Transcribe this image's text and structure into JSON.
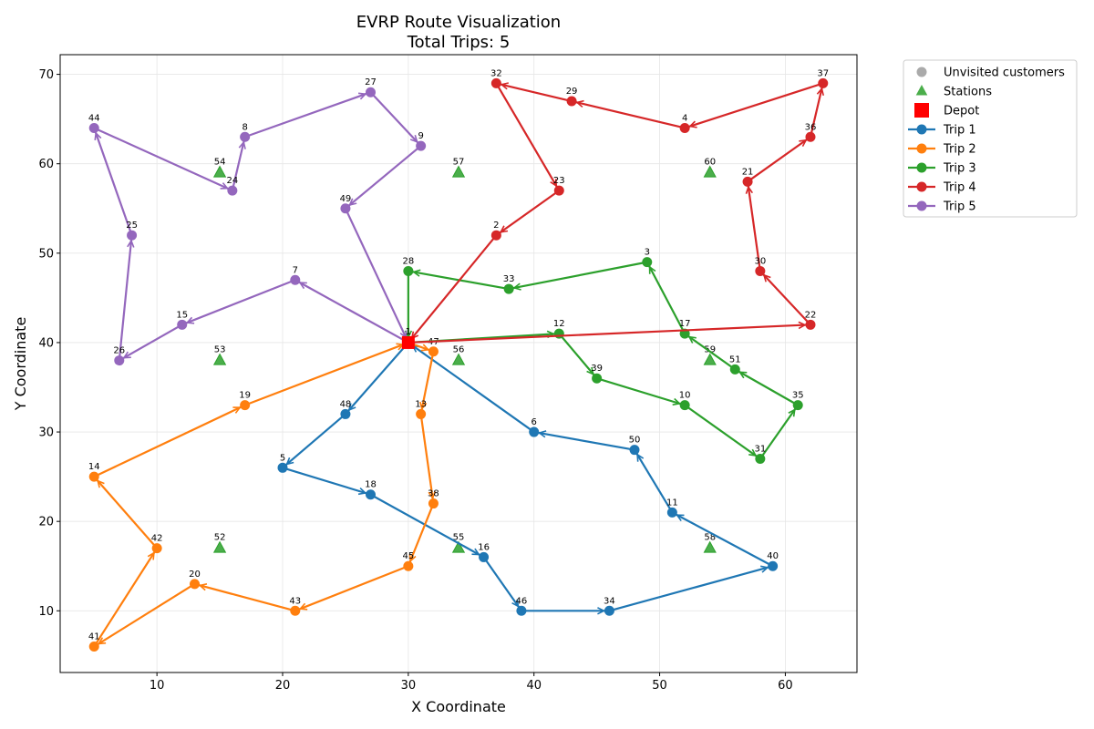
{
  "chart_data": {
    "type": "scatter",
    "title": "EVRP Route Visualization",
    "subtitle": "Total Trips: 5",
    "xlabel": "X Coordinate",
    "ylabel": "Y Coordinate",
    "xlim": [
      2.3,
      65.7
    ],
    "ylim": [
      3.1,
      72.2
    ],
    "xticks": [
      10,
      20,
      30,
      40,
      50,
      60
    ],
    "yticks": [
      10,
      20,
      30,
      40,
      50,
      60,
      70
    ],
    "grid": true,
    "legend_placement": "outside-top-right",
    "depot": {
      "id": "1",
      "x": 30,
      "y": 40,
      "color": "#ff0000"
    },
    "stations": [
      {
        "id": "52",
        "x": 15,
        "y": 17
      },
      {
        "id": "53",
        "x": 15,
        "y": 38
      },
      {
        "id": "54",
        "x": 15,
        "y": 59
      },
      {
        "id": "55",
        "x": 34,
        "y": 17
      },
      {
        "id": "56",
        "x": 34,
        "y": 38
      },
      {
        "id": "57",
        "x": 34,
        "y": 59
      },
      {
        "id": "58",
        "x": 54,
        "y": 17
      },
      {
        "id": "59",
        "x": 54,
        "y": 38
      },
      {
        "id": "60",
        "x": 54,
        "y": 59
      }
    ],
    "station_color": "#2ca02c",
    "unvisited_color": "#aaaaaa",
    "trips": [
      {
        "name": "Trip 1",
        "color": "#1f77b4",
        "route": [
          {
            "id": "1",
            "x": 30,
            "y": 40
          },
          {
            "id": "48",
            "x": 25,
            "y": 32
          },
          {
            "id": "5",
            "x": 20,
            "y": 26
          },
          {
            "id": "18",
            "x": 27,
            "y": 23
          },
          {
            "id": "16",
            "x": 36,
            "y": 16
          },
          {
            "id": "46",
            "x": 39,
            "y": 10
          },
          {
            "id": "34",
            "x": 46,
            "y": 10
          },
          {
            "id": "40",
            "x": 59,
            "y": 15
          },
          {
            "id": "11",
            "x": 51,
            "y": 21
          },
          {
            "id": "50",
            "x": 48,
            "y": 28
          },
          {
            "id": "6",
            "x": 40,
            "y": 30
          },
          {
            "id": "1",
            "x": 30,
            "y": 40
          }
        ]
      },
      {
        "name": "Trip 2",
        "color": "#ff7f0e",
        "route": [
          {
            "id": "1",
            "x": 30,
            "y": 40
          },
          {
            "id": "47",
            "x": 32,
            "y": 39
          },
          {
            "id": "13",
            "x": 31,
            "y": 32
          },
          {
            "id": "38",
            "x": 32,
            "y": 22
          },
          {
            "id": "45",
            "x": 30,
            "y": 15
          },
          {
            "id": "43",
            "x": 21,
            "y": 10
          },
          {
            "id": "20",
            "x": 13,
            "y": 13
          },
          {
            "id": "41",
            "x": 5,
            "y": 6
          },
          {
            "id": "42",
            "x": 10,
            "y": 17
          },
          {
            "id": "14",
            "x": 5,
            "y": 25
          },
          {
            "id": "19",
            "x": 17,
            "y": 33
          },
          {
            "id": "1",
            "x": 30,
            "y": 40
          }
        ]
      },
      {
        "name": "Trip 3",
        "color": "#2ca02c",
        "route": [
          {
            "id": "1",
            "x": 30,
            "y": 40
          },
          {
            "id": "12",
            "x": 42,
            "y": 41
          },
          {
            "id": "39",
            "x": 45,
            "y": 36
          },
          {
            "id": "10",
            "x": 52,
            "y": 33
          },
          {
            "id": "31",
            "x": 58,
            "y": 27
          },
          {
            "id": "35",
            "x": 61,
            "y": 33
          },
          {
            "id": "51",
            "x": 56,
            "y": 37
          },
          {
            "id": "17",
            "x": 52,
            "y": 41
          },
          {
            "id": "3",
            "x": 49,
            "y": 49
          },
          {
            "id": "33",
            "x": 38,
            "y": 46
          },
          {
            "id": "28",
            "x": 30,
            "y": 48
          },
          {
            "id": "1",
            "x": 30,
            "y": 40
          }
        ]
      },
      {
        "name": "Trip 4",
        "color": "#d62728",
        "route": [
          {
            "id": "1",
            "x": 30,
            "y": 40
          },
          {
            "id": "22",
            "x": 62,
            "y": 42
          },
          {
            "id": "30",
            "x": 58,
            "y": 48
          },
          {
            "id": "21",
            "x": 57,
            "y": 58
          },
          {
            "id": "36",
            "x": 62,
            "y": 63
          },
          {
            "id": "37",
            "x": 63,
            "y": 69
          },
          {
            "id": "4",
            "x": 52,
            "y": 64
          },
          {
            "id": "29",
            "x": 43,
            "y": 67
          },
          {
            "id": "32",
            "x": 37,
            "y": 69
          },
          {
            "id": "23",
            "x": 42,
            "y": 57
          },
          {
            "id": "2",
            "x": 37,
            "y": 52
          },
          {
            "id": "1",
            "x": 30,
            "y": 40
          }
        ]
      },
      {
        "name": "Trip 5",
        "color": "#9467bd",
        "route": [
          {
            "id": "1",
            "x": 30,
            "y": 40
          },
          {
            "id": "7",
            "x": 21,
            "y": 47
          },
          {
            "id": "15",
            "x": 12,
            "y": 42
          },
          {
            "id": "26",
            "x": 7,
            "y": 38
          },
          {
            "id": "25",
            "x": 8,
            "y": 52
          },
          {
            "id": "44",
            "x": 5,
            "y": 64
          },
          {
            "id": "24",
            "x": 16,
            "y": 57
          },
          {
            "id": "8",
            "x": 17,
            "y": 63
          },
          {
            "id": "27",
            "x": 27,
            "y": 68
          },
          {
            "id": "9",
            "x": 31,
            "y": 62
          },
          {
            "id": "49",
            "x": 25,
            "y": 55
          },
          {
            "id": "1",
            "x": 30,
            "y": 40
          }
        ]
      }
    ],
    "legend": [
      "Unvisited customers",
      "Stations",
      "Depot",
      "Trip 1",
      "Trip 2",
      "Trip 3",
      "Trip 4",
      "Trip 5"
    ]
  }
}
